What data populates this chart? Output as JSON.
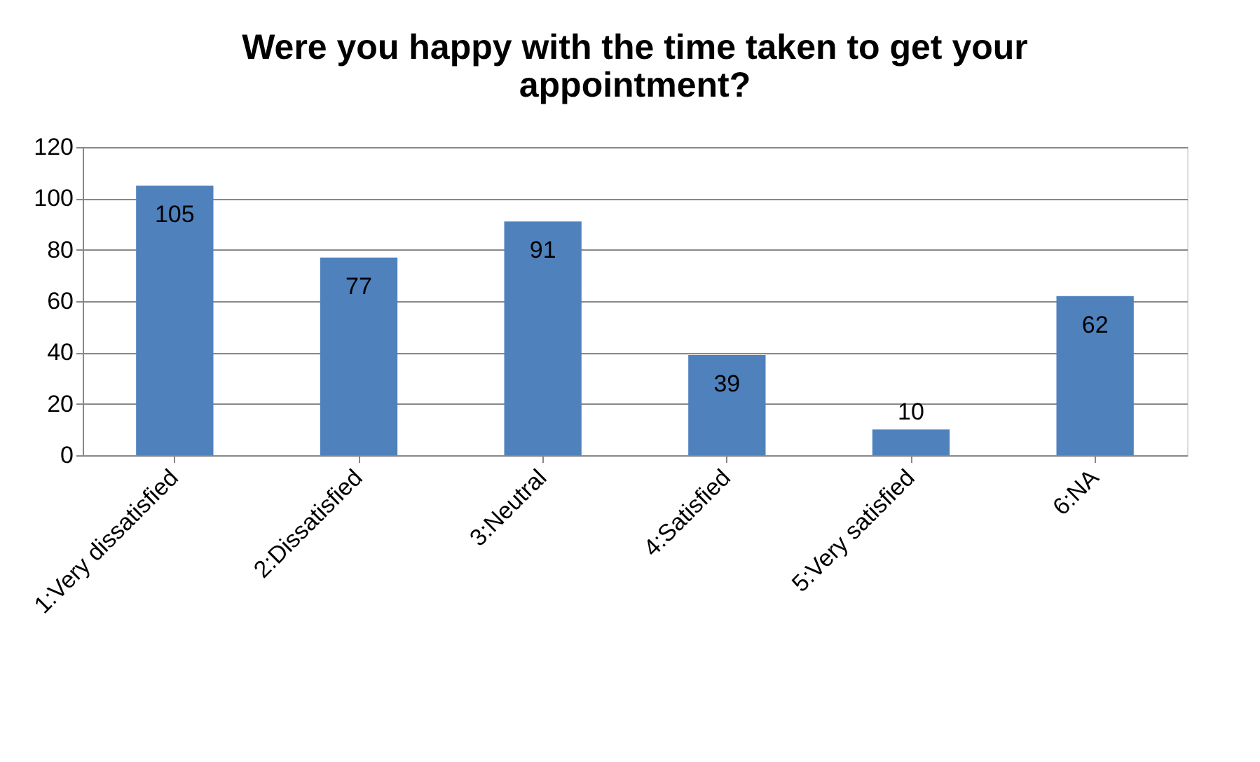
{
  "chart_data": {
    "type": "bar",
    "title": "Were you happy with the time taken to get your appointment?",
    "categories": [
      "1:Very dissatisfied",
      "2:Dissatisfied",
      "3:Neutral",
      "4:Satisfied",
      "5:Very satisfied",
      "6:NA"
    ],
    "values": [
      105,
      77,
      91,
      39,
      10,
      62
    ],
    "color": "#4f81bd",
    "ylim": [
      0,
      120
    ],
    "yticks": [
      0,
      20,
      40,
      60,
      80,
      100,
      120
    ],
    "grid": "y",
    "data_labels": true
  }
}
